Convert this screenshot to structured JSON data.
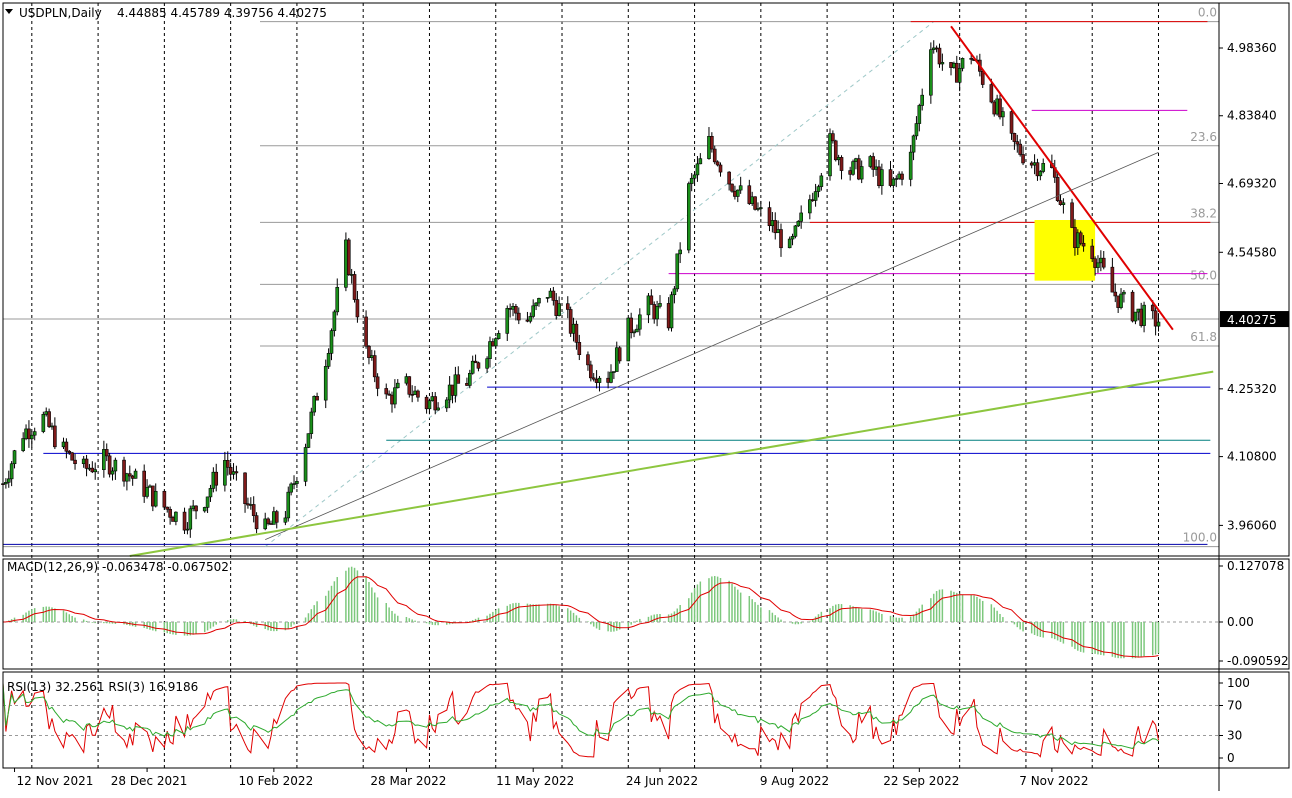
{
  "header": {
    "symbol": "USDPLN,Daily",
    "ohlc": "4.44885 4.45789 4.39756 4.40275"
  },
  "chart_data": {
    "type": "candlestick",
    "symbol": "USDPLN",
    "timeframe": "Daily",
    "last_price": 4.40275,
    "last_price_label": "4.40275",
    "price_axis": {
      "ylim": [
        3.895,
        5.08
      ],
      "ticks": [
        "4.98360",
        "4.83840",
        "4.69320",
        "4.54580",
        "4.40275",
        "4.25320",
        "4.10800",
        "3.96060"
      ]
    },
    "date_axis": {
      "labels": [
        "12 Nov 2021",
        "28 Dec 2021",
        "10 Feb 2022",
        "28 Mar 2022",
        "11 May 2022",
        "24 Jun 2022",
        "9 Aug 2022",
        "22 Sep 2022",
        "7 Nov 2022"
      ]
    },
    "close_path": [
      {
        "date": "2021-11-08",
        "close": 4.05
      },
      {
        "date": "2021-11-15",
        "close": 4.16
      },
      {
        "date": "2021-11-22",
        "close": 4.19
      },
      {
        "date": "2021-11-29",
        "close": 4.12
      },
      {
        "date": "2021-12-06",
        "close": 4.08
      },
      {
        "date": "2021-12-13",
        "close": 4.1
      },
      {
        "date": "2021-12-20",
        "close": 4.08
      },
      {
        "date": "2021-12-27",
        "close": 4.04
      },
      {
        "date": "2022-01-03",
        "close": 4.0
      },
      {
        "date": "2022-01-10",
        "close": 3.97
      },
      {
        "date": "2022-01-17",
        "close": 4.02
      },
      {
        "date": "2022-01-24",
        "close": 4.1
      },
      {
        "date": "2022-01-31",
        "close": 4.01
      },
      {
        "date": "2022-02-07",
        "close": 3.95
      },
      {
        "date": "2022-02-14",
        "close": 3.99
      },
      {
        "date": "2022-02-21",
        "close": 4.14
      },
      {
        "date": "2022-02-28",
        "close": 4.32
      },
      {
        "date": "2022-03-07",
        "close": 4.55
      },
      {
        "date": "2022-03-14",
        "close": 4.33
      },
      {
        "date": "2022-03-21",
        "close": 4.23
      },
      {
        "date": "2022-03-28",
        "close": 4.26
      },
      {
        "date": "2022-04-04",
        "close": 4.22
      },
      {
        "date": "2022-04-11",
        "close": 4.25
      },
      {
        "date": "2022-04-18",
        "close": 4.27
      },
      {
        "date": "2022-04-25",
        "close": 4.34
      },
      {
        "date": "2022-05-02",
        "close": 4.43
      },
      {
        "date": "2022-05-09",
        "close": 4.4
      },
      {
        "date": "2022-05-16",
        "close": 4.46
      },
      {
        "date": "2022-05-23",
        "close": 4.4
      },
      {
        "date": "2022-05-30",
        "close": 4.3
      },
      {
        "date": "2022-06-06",
        "close": 4.28
      },
      {
        "date": "2022-06-13",
        "close": 4.38
      },
      {
        "date": "2022-06-20",
        "close": 4.43
      },
      {
        "date": "2022-06-27",
        "close": 4.4
      },
      {
        "date": "2022-07-04",
        "close": 4.68
      },
      {
        "date": "2022-07-11",
        "close": 4.78
      },
      {
        "date": "2022-07-18",
        "close": 4.7
      },
      {
        "date": "2022-07-25",
        "close": 4.65
      },
      {
        "date": "2022-08-01",
        "close": 4.61
      },
      {
        "date": "2022-08-08",
        "close": 4.55
      },
      {
        "date": "2022-08-15",
        "close": 4.66
      },
      {
        "date": "2022-08-22",
        "close": 4.78
      },
      {
        "date": "2022-08-29",
        "close": 4.72
      },
      {
        "date": "2022-09-05",
        "close": 4.73
      },
      {
        "date": "2022-09-12",
        "close": 4.68
      },
      {
        "date": "2022-09-19",
        "close": 4.75
      },
      {
        "date": "2022-09-26",
        "close": 5.0
      },
      {
        "date": "2022-10-03",
        "close": 4.92
      },
      {
        "date": "2022-10-10",
        "close": 4.97
      },
      {
        "date": "2022-10-17",
        "close": 4.88
      },
      {
        "date": "2022-10-24",
        "close": 4.78
      },
      {
        "date": "2022-10-31",
        "close": 4.74
      },
      {
        "date": "2022-11-07",
        "close": 4.72
      },
      {
        "date": "2022-11-14",
        "close": 4.58
      },
      {
        "date": "2022-11-21",
        "close": 4.55
      },
      {
        "date": "2022-11-28",
        "close": 4.46
      },
      {
        "date": "2022-12-05",
        "close": 4.42
      },
      {
        "date": "2022-12-12",
        "close": 4.4
      }
    ],
    "levels": {
      "fib_top": 5.04,
      "fib_bottom": 3.915,
      "fib_labels": [
        {
          "text": "0.0",
          "price": 5.04
        },
        {
          "text": "23.6",
          "price": 4.774
        },
        {
          "text": "38.2",
          "price": 4.61
        },
        {
          "text": "50.0",
          "price": 4.477
        },
        {
          "text": "61.8",
          "price": 4.345
        },
        {
          "text": "100.0",
          "price": 3.915
        }
      ],
      "horizontal_lines": [
        {
          "price": 5.04,
          "color": "#e00000",
          "from": "2022-09-19",
          "to": "2022-12-31"
        },
        {
          "price": 4.85,
          "color": "#cc00cc",
          "from": "2022-10-31",
          "to": "2022-12-24"
        },
        {
          "price": 4.61,
          "color": "#e00000",
          "from": "2022-08-15",
          "to": "2023-01-01"
        },
        {
          "price": 4.5,
          "color": "#cc00cc",
          "from": "2022-06-27",
          "to": "2022-12-31"
        },
        {
          "price": 4.257,
          "color": "#0000cc",
          "from": "2022-04-25",
          "to": "2023-01-01"
        },
        {
          "price": 4.115,
          "color": "#0000cc",
          "from": "2021-11-22",
          "to": "2023-01-01"
        },
        {
          "price": 4.143,
          "color": "#007f7f",
          "from": "2022-03-21",
          "to": "2023-01-01"
        },
        {
          "price": 3.92,
          "color": "#0000aa",
          "from": "2021-11-08",
          "to": "2022-12-31"
        }
      ],
      "trendlines": [
        {
          "from": [
            "2022-10-03",
            5.03
          ],
          "to": [
            "2022-12-19",
            4.38
          ],
          "color": "#e00000"
        },
        {
          "from": [
            "2022-02-07",
            3.93
          ],
          "to": [
            "2022-12-14",
            4.76
          ],
          "color": "#555555"
        },
        {
          "from": [
            "2021-12-22",
            3.895
          ],
          "to": [
            "2023-01-02",
            4.29
          ],
          "color": "#8dc63f"
        }
      ],
      "highlight_box": {
        "from": [
          "2022-11-01",
          4.615
        ],
        "to": [
          "2022-11-22",
          4.485
        ],
        "color": "#ffff00"
      }
    }
  },
  "macd": {
    "label": "MACD(12,26,9) -0.063478 -0.067502",
    "ticks": [
      "0.127078",
      "0.00",
      "-0.090592"
    ]
  },
  "rsi": {
    "label": "RSI(13) 32.2561  RSI(3) 16.9186",
    "ticks": [
      "100",
      "70",
      "30",
      "0"
    ]
  },
  "colors": {
    "candle_up": "#1a8f1a",
    "candle_down": "#7f1a1a",
    "grid": "#000000",
    "macd_hist": "#7dc87d",
    "macd_signal": "#e00000",
    "rsi13": "#2eaa2e",
    "rsi3": "#e00000"
  }
}
